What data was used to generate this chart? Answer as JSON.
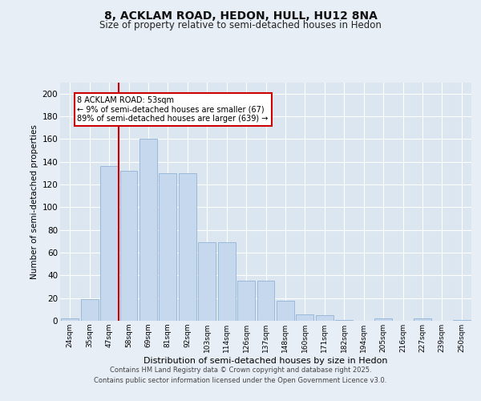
{
  "title_line1": "8, ACKLAM ROAD, HEDON, HULL, HU12 8NA",
  "title_line2": "Size of property relative to semi-detached houses in Hedon",
  "xlabel": "Distribution of semi-detached houses by size in Hedon",
  "ylabel": "Number of semi-detached properties",
  "categories": [
    "24sqm",
    "35sqm",
    "47sqm",
    "58sqm",
    "69sqm",
    "81sqm",
    "92sqm",
    "103sqm",
    "114sqm",
    "126sqm",
    "137sqm",
    "148sqm",
    "160sqm",
    "171sqm",
    "182sqm",
    "194sqm",
    "205sqm",
    "216sqm",
    "227sqm",
    "239sqm",
    "250sqm"
  ],
  "values": [
    2,
    19,
    136,
    132,
    160,
    130,
    130,
    69,
    69,
    35,
    35,
    18,
    6,
    5,
    1,
    0,
    2,
    0,
    2,
    0,
    1
  ],
  "bar_color": "#c5d8ee",
  "bar_edge_color": "#9ab8d8",
  "background_color": "#e8eef6",
  "plot_bg_color": "#dce6f0",
  "grid_color": "#ffffff",
  "annotation_title": "8 ACKLAM ROAD: 53sqm",
  "annotation_line1": "← 9% of semi-detached houses are smaller (67)",
  "annotation_line2": "89% of semi-detached houses are larger (639) →",
  "vline_color": "#cc0000",
  "annotation_box_color": "#ffffff",
  "annotation_box_edge_color": "#cc0000",
  "footer_line1": "Contains HM Land Registry data © Crown copyright and database right 2025.",
  "footer_line2": "Contains public sector information licensed under the Open Government Licence v3.0.",
  "ylim": [
    0,
    210
  ],
  "yticks": [
    0,
    20,
    40,
    60,
    80,
    100,
    120,
    140,
    160,
    180,
    200
  ],
  "vline_x": 2.5
}
